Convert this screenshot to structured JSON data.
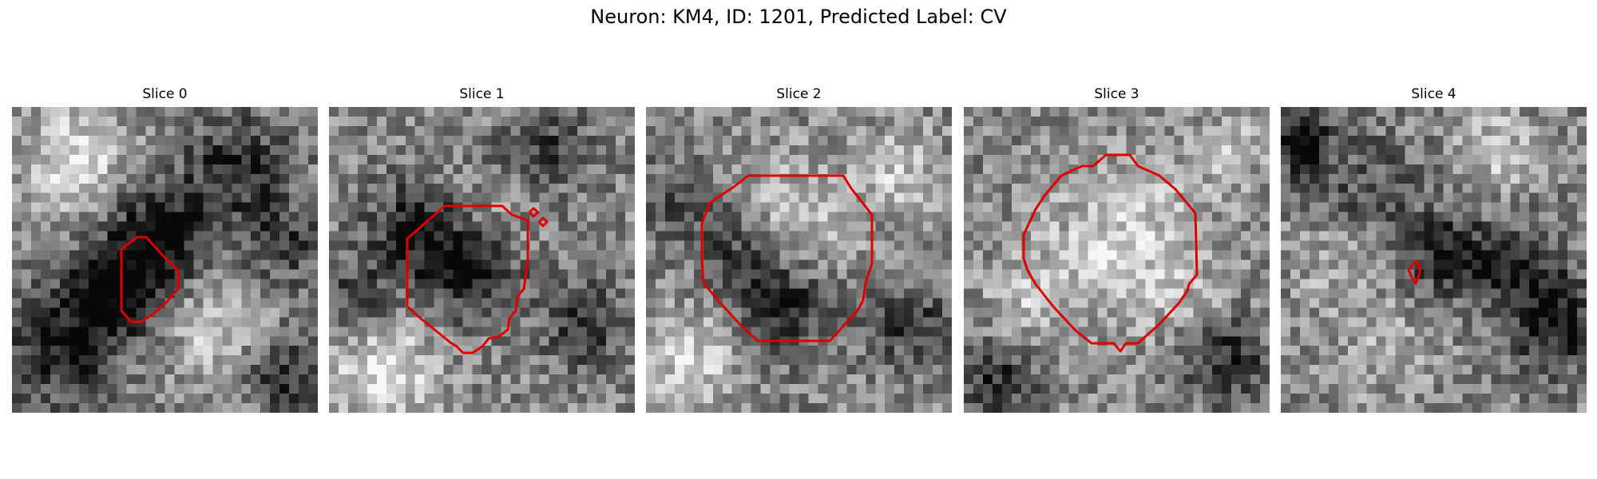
{
  "figure": {
    "title": "Neuron: KM4, ID: 1201, Predicted Label: CV"
  },
  "colors": {
    "contour": "#e00000",
    "background": "#ffffff"
  },
  "panels": [
    {
      "title": "Slice 0"
    },
    {
      "title": "Slice 1"
    },
    {
      "title": "Slice 2"
    },
    {
      "title": "Slice 3"
    },
    {
      "title": "Slice 4"
    }
  ]
}
